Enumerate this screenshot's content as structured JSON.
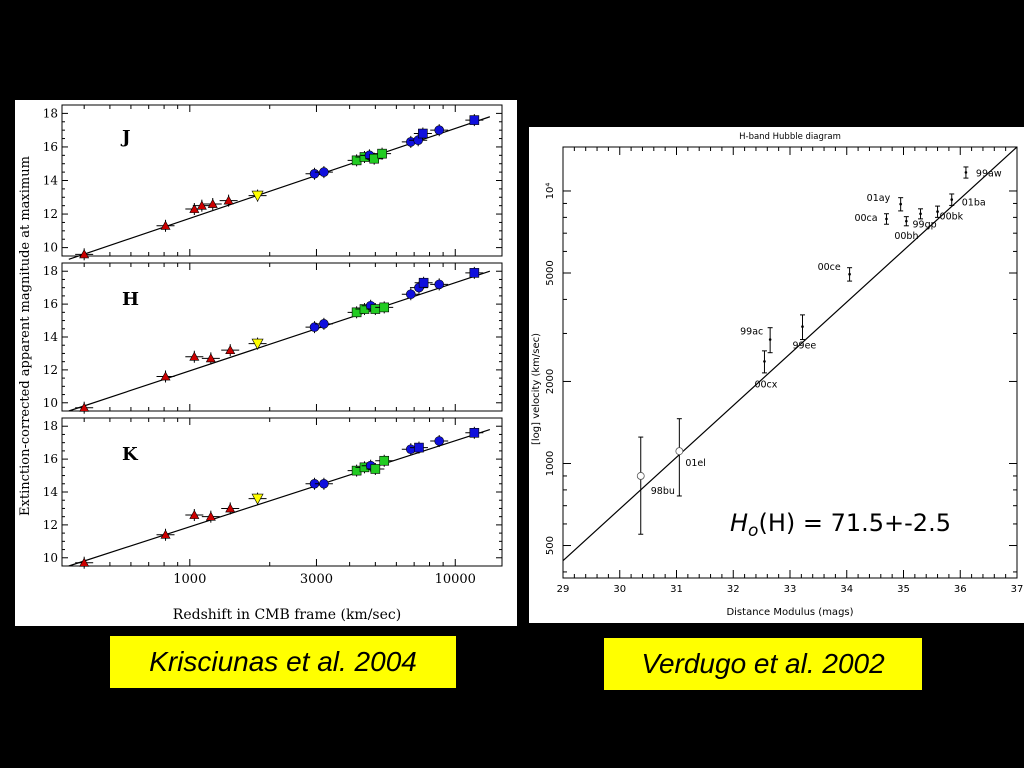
{
  "captions": {
    "left": "Krisciunas et al. 2004",
    "right": "Verdugo et al. 2002"
  },
  "colors": {
    "background": "#000000",
    "caption_bg": "#ffff00",
    "red": "#cc0000",
    "yellow": "#ffff00",
    "green": "#22cc22",
    "blue": "#1010dd"
  },
  "chart_data": [
    {
      "type": "scatter",
      "ylabel": "Extinction-corrected apparent magnitude at maximum",
      "xlabel": "Redshift in CMB frame (km/sec)",
      "xscale": "log",
      "xlim": [
        330,
        15000
      ],
      "xticks": [
        {
          "value": 1000,
          "label": "1000"
        },
        {
          "value": 3000,
          "label": "3000"
        },
        {
          "value": 10000,
          "label": "10000"
        }
      ],
      "yticks": [
        {
          "value": 10,
          "label": "10"
        },
        {
          "value": 12,
          "label": "12"
        },
        {
          "value": 14,
          "label": "14"
        },
        {
          "value": 16,
          "label": "16"
        },
        {
          "value": 18,
          "label": "18"
        }
      ],
      "panels": [
        {
          "band": "J",
          "ylim": [
            9.5,
            18.5
          ],
          "line": [
            [
              350,
              9.3
            ],
            [
              13500,
              17.8
            ]
          ],
          "points": [
            {
              "x": 400,
              "y": 9.6,
              "marker": "triangle",
              "color": "red"
            },
            {
              "x": 810,
              "y": 11.3,
              "marker": "triangle",
              "color": "red"
            },
            {
              "x": 1040,
              "y": 12.3,
              "marker": "triangle",
              "color": "red"
            },
            {
              "x": 1110,
              "y": 12.5,
              "marker": "triangle",
              "color": "red"
            },
            {
              "x": 1220,
              "y": 12.6,
              "marker": "triangle",
              "color": "red"
            },
            {
              "x": 1400,
              "y": 12.8,
              "marker": "triangle",
              "color": "red"
            },
            {
              "x": 1800,
              "y": 13.1,
              "marker": "triangle-down",
              "color": "yellow"
            },
            {
              "x": 2950,
              "y": 14.4,
              "marker": "circle",
              "color": "blue"
            },
            {
              "x": 3200,
              "y": 14.5,
              "marker": "circle",
              "color": "blue"
            },
            {
              "x": 4250,
              "y": 15.2,
              "marker": "square",
              "color": "green"
            },
            {
              "x": 4550,
              "y": 15.4,
              "marker": "square",
              "color": "green"
            },
            {
              "x": 4750,
              "y": 15.5,
              "marker": "circle",
              "color": "blue"
            },
            {
              "x": 4950,
              "y": 15.3,
              "marker": "square",
              "color": "green"
            },
            {
              "x": 5300,
              "y": 15.6,
              "marker": "square",
              "color": "green"
            },
            {
              "x": 6800,
              "y": 16.3,
              "marker": "circle",
              "color": "blue"
            },
            {
              "x": 7250,
              "y": 16.4,
              "marker": "circle",
              "color": "blue"
            },
            {
              "x": 7550,
              "y": 16.8,
              "marker": "square",
              "color": "blue"
            },
            {
              "x": 8700,
              "y": 17.0,
              "marker": "circle",
              "color": "blue"
            },
            {
              "x": 11800,
              "y": 17.6,
              "marker": "square",
              "color": "blue"
            }
          ]
        },
        {
          "band": "H",
          "ylim": [
            9.5,
            18.5
          ],
          "line": [
            [
              350,
              9.5
            ],
            [
              13500,
              18.0
            ]
          ],
          "points": [
            {
              "x": 400,
              "y": 9.7,
              "marker": "triangle",
              "color": "red"
            },
            {
              "x": 810,
              "y": 11.6,
              "marker": "triangle",
              "color": "red"
            },
            {
              "x": 1040,
              "y": 12.8,
              "marker": "triangle",
              "color": "red"
            },
            {
              "x": 1200,
              "y": 12.7,
              "marker": "triangle",
              "color": "red"
            },
            {
              "x": 1420,
              "y": 13.2,
              "marker": "triangle",
              "color": "red"
            },
            {
              "x": 1800,
              "y": 13.6,
              "marker": "triangle-down",
              "color": "yellow"
            },
            {
              "x": 2950,
              "y": 14.6,
              "marker": "circle",
              "color": "blue"
            },
            {
              "x": 3200,
              "y": 14.8,
              "marker": "circle",
              "color": "blue"
            },
            {
              "x": 4250,
              "y": 15.5,
              "marker": "square",
              "color": "green"
            },
            {
              "x": 4550,
              "y": 15.7,
              "marker": "square",
              "color": "green"
            },
            {
              "x": 4800,
              "y": 15.9,
              "marker": "circle",
              "color": "blue"
            },
            {
              "x": 5000,
              "y": 15.7,
              "marker": "square",
              "color": "green"
            },
            {
              "x": 5400,
              "y": 15.8,
              "marker": "square",
              "color": "green"
            },
            {
              "x": 6800,
              "y": 16.6,
              "marker": "circle",
              "color": "blue"
            },
            {
              "x": 7300,
              "y": 17.0,
              "marker": "circle",
              "color": "blue"
            },
            {
              "x": 7600,
              "y": 17.3,
              "marker": "square",
              "color": "blue"
            },
            {
              "x": 8700,
              "y": 17.2,
              "marker": "circle",
              "color": "blue"
            },
            {
              "x": 11800,
              "y": 17.9,
              "marker": "square",
              "color": "blue"
            }
          ]
        },
        {
          "band": "K",
          "ylim": [
            9.5,
            18.5
          ],
          "line": [
            [
              350,
              9.5
            ],
            [
              13500,
              17.8
            ]
          ],
          "points": [
            {
              "x": 400,
              "y": 9.7,
              "marker": "triangle",
              "color": "red"
            },
            {
              "x": 810,
              "y": 11.4,
              "marker": "triangle",
              "color": "red"
            },
            {
              "x": 1040,
              "y": 12.6,
              "marker": "triangle",
              "color": "red"
            },
            {
              "x": 1200,
              "y": 12.5,
              "marker": "triangle",
              "color": "red"
            },
            {
              "x": 1420,
              "y": 13.0,
              "marker": "triangle",
              "color": "red"
            },
            {
              "x": 1800,
              "y": 13.6,
              "marker": "triangle-down",
              "color": "yellow"
            },
            {
              "x": 2950,
              "y": 14.5,
              "marker": "circle",
              "color": "blue"
            },
            {
              "x": 3200,
              "y": 14.5,
              "marker": "circle",
              "color": "blue"
            },
            {
              "x": 4250,
              "y": 15.3,
              "marker": "square",
              "color": "green"
            },
            {
              "x": 4550,
              "y": 15.5,
              "marker": "square",
              "color": "green"
            },
            {
              "x": 4800,
              "y": 15.6,
              "marker": "circle",
              "color": "blue"
            },
            {
              "x": 5000,
              "y": 15.4,
              "marker": "square",
              "color": "green"
            },
            {
              "x": 5400,
              "y": 15.9,
              "marker": "square",
              "color": "green"
            },
            {
              "x": 6800,
              "y": 16.6,
              "marker": "circle",
              "color": "blue"
            },
            {
              "x": 7300,
              "y": 16.7,
              "marker": "square",
              "color": "blue"
            },
            {
              "x": 8700,
              "y": 17.1,
              "marker": "circle",
              "color": "blue"
            },
            {
              "x": 11800,
              "y": 17.6,
              "marker": "square",
              "color": "blue"
            }
          ]
        }
      ]
    },
    {
      "type": "scatter",
      "title": "H-band Hubble diagram",
      "xlabel": "Distance Modulus (mags)",
      "ylabel": "[log] velocity (km/sec)",
      "yscale": "log",
      "xlim": [
        29,
        37
      ],
      "ylim": [
        380,
        14500
      ],
      "xticks": [
        29,
        30,
        31,
        32,
        33,
        34,
        35,
        36,
        37
      ],
      "yticks": [
        {
          "value": 500,
          "label": "500"
        },
        {
          "value": 1000,
          "label": "1000"
        },
        {
          "value": 2000,
          "label": "2000"
        },
        {
          "value": 5000,
          "label": "5000"
        },
        {
          "value": 10000,
          "label": "10⁴"
        }
      ],
      "fit_line": [
        [
          29,
          440
        ],
        [
          37,
          14500
        ]
      ],
      "annotation": "H(H) = 71.5+-2.5",
      "annotation_sub": "o",
      "points": [
        {
          "name": "98bu",
          "x": 30.37,
          "y": 900,
          "err": 350,
          "marker": "open-circle"
        },
        {
          "name": "01el",
          "x": 31.05,
          "y": 1110,
          "err": 350,
          "marker": "open-circle"
        },
        {
          "name": "00cx",
          "x": 32.55,
          "y": 2370,
          "err": 220
        },
        {
          "name": "99ac",
          "x": 32.65,
          "y": 2850,
          "err": 300
        },
        {
          "name": "99ee",
          "x": 33.22,
          "y": 3180,
          "err": 330
        },
        {
          "name": "00ce",
          "x": 34.05,
          "y": 4950,
          "err": 280
        },
        {
          "name": "00ca",
          "x": 34.7,
          "y": 7900,
          "err": 350
        },
        {
          "name": "01ay",
          "x": 34.95,
          "y": 8950,
          "err": 500
        },
        {
          "name": "00bh",
          "x": 35.05,
          "y": 7750,
          "err": 300
        },
        {
          "name": "99gp",
          "x": 35.3,
          "y": 8250,
          "err": 350
        },
        {
          "name": "00bk",
          "x": 35.6,
          "y": 8400,
          "err": 400
        },
        {
          "name": "01ba",
          "x": 35.85,
          "y": 9300,
          "err": 450
        },
        {
          "name": "99aw",
          "x": 36.1,
          "y": 11700,
          "err": 550
        }
      ]
    }
  ]
}
